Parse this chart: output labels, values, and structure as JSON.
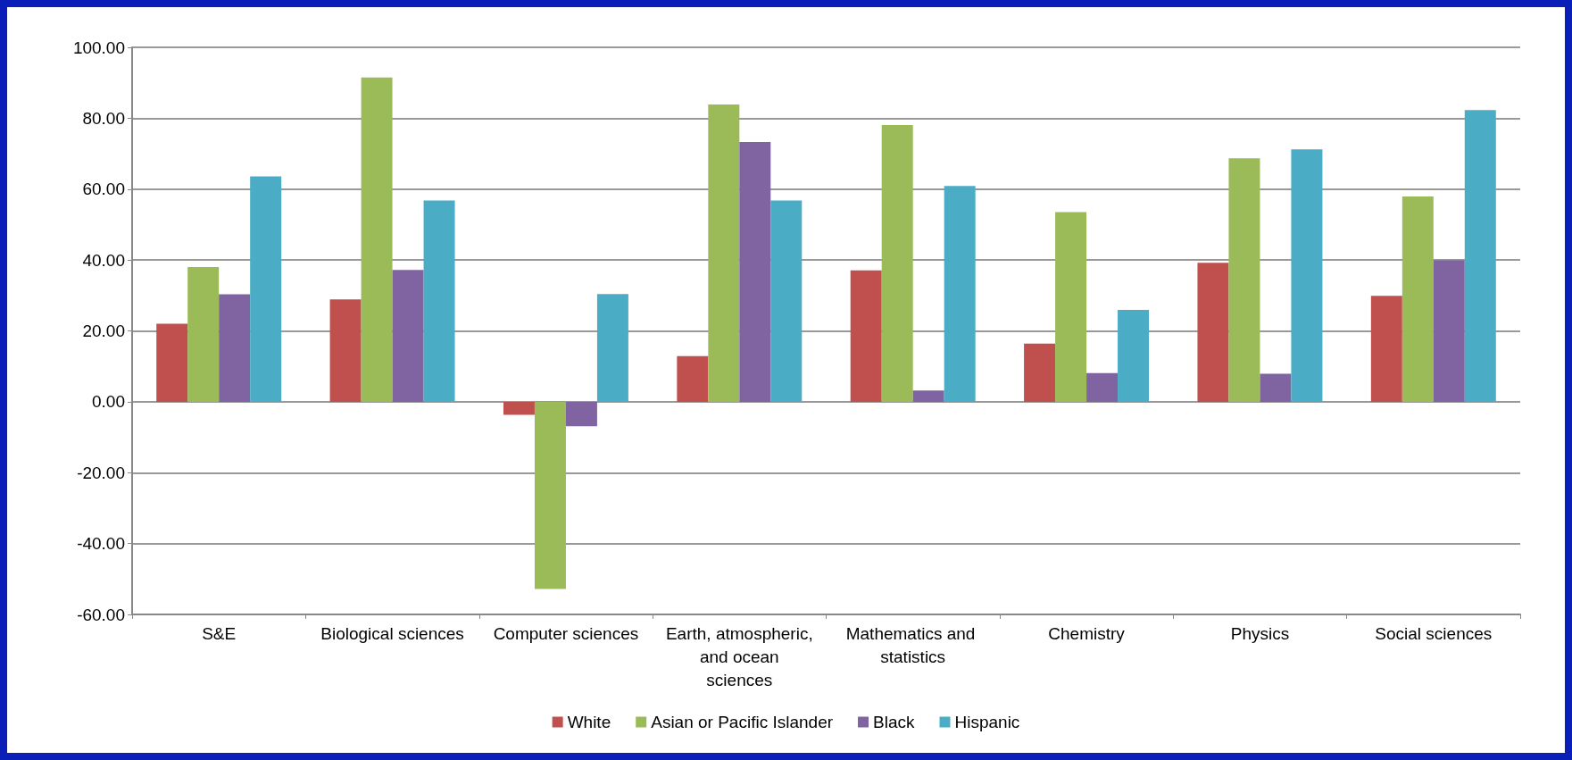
{
  "chart_data": {
    "type": "bar",
    "categories": [
      "S&E",
      "Biological sciences",
      "Computer sciences",
      "Earth, atmospheric, and ocean sciences",
      "Mathematics and statistics",
      "Chemistry",
      "Physics",
      "Social sciences"
    ],
    "series": [
      {
        "name": "White",
        "color": "#c0504d",
        "values": [
          22.0,
          28.9,
          -3.7,
          12.9,
          37.1,
          16.4,
          39.2,
          29.9
        ]
      },
      {
        "name": "Asian or Pacific Islander",
        "color": "#9bbb59",
        "values": [
          38.0,
          91.5,
          -52.8,
          83.9,
          78.1,
          53.5,
          68.7,
          57.9
        ]
      },
      {
        "name": "Black",
        "color": "#8064a2",
        "values": [
          30.3,
          37.2,
          -6.9,
          73.3,
          3.2,
          8.1,
          7.9,
          39.9
        ]
      },
      {
        "name": "Hispanic",
        "color": "#4bacc6",
        "values": [
          63.6,
          56.8,
          30.4,
          56.8,
          60.9,
          25.9,
          71.2,
          82.3
        ]
      }
    ],
    "ylim": [
      -60,
      100
    ],
    "yticks": [
      {
        "value": -60,
        "label": "-60.00"
      },
      {
        "value": -40,
        "label": "-40.00"
      },
      {
        "value": -20,
        "label": "-20.00"
      },
      {
        "value": 0,
        "label": "0.00"
      },
      {
        "value": 20,
        "label": "20.00"
      },
      {
        "value": 40,
        "label": "40.00"
      },
      {
        "value": 60,
        "label": "60.00"
      },
      {
        "value": 80,
        "label": "80.00"
      },
      {
        "value": 100,
        "label": "100.00"
      }
    ],
    "grid": "y",
    "legend": "bottom"
  }
}
